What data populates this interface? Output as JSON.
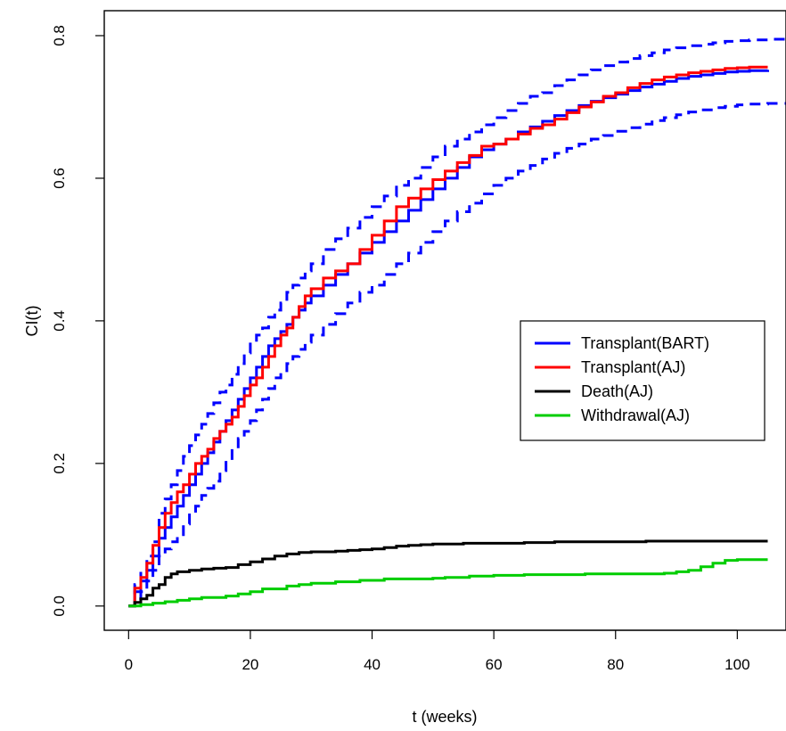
{
  "chart_data": {
    "type": "line",
    "title": "",
    "xlabel": "t (weeks)",
    "ylabel": "CI(t)",
    "xlim": [
      -4,
      108
    ],
    "ylim": [
      -0.034,
      0.835
    ],
    "xticks": [
      0,
      20,
      40,
      60,
      80,
      100
    ],
    "yticks": [
      0.0,
      0.2,
      0.4,
      0.6,
      0.8
    ],
    "xtick_labels": [
      "0",
      "20",
      "40",
      "60",
      "80",
      "100"
    ],
    "ytick_labels": [
      "0.0",
      "0.2",
      "0.4",
      "0.6",
      "0.8"
    ],
    "grid": false,
    "step": true,
    "legend": {
      "position": "right",
      "entries": [
        "Transplant(BART)",
        "Transplant(AJ)",
        "Death(AJ)",
        "Withdrawal(AJ)"
      ]
    },
    "colors": {
      "Transplant(BART)": "#0000ff",
      "Transplant(AJ)": "#ff0000",
      "Death(AJ)": "#000000",
      "Withdrawal(AJ)": "#00cd00"
    },
    "series": [
      {
        "name": "Transplant(BART)",
        "color": "#0000ff",
        "style": "solid",
        "x": [
          0,
          1,
          2,
          3,
          4,
          5,
          6,
          7,
          8,
          9,
          10,
          11,
          12,
          13,
          14,
          15,
          16,
          17,
          18,
          19,
          20,
          21,
          22,
          23,
          24,
          25,
          26,
          27,
          28,
          29,
          30,
          32,
          34,
          36,
          38,
          40,
          42,
          44,
          46,
          48,
          50,
          52,
          54,
          56,
          58,
          60,
          62,
          64,
          66,
          68,
          70,
          72,
          74,
          76,
          78,
          80,
          82,
          84,
          86,
          88,
          90,
          92,
          94,
          96,
          98,
          100,
          102,
          105
        ],
        "y": [
          0.0,
          0.02,
          0.035,
          0.05,
          0.07,
          0.095,
          0.11,
          0.125,
          0.14,
          0.155,
          0.17,
          0.185,
          0.2,
          0.215,
          0.23,
          0.245,
          0.26,
          0.275,
          0.29,
          0.305,
          0.32,
          0.335,
          0.35,
          0.365,
          0.375,
          0.385,
          0.395,
          0.405,
          0.415,
          0.425,
          0.435,
          0.45,
          0.465,
          0.48,
          0.495,
          0.51,
          0.525,
          0.54,
          0.555,
          0.57,
          0.585,
          0.6,
          0.615,
          0.63,
          0.64,
          0.648,
          0.655,
          0.665,
          0.672,
          0.68,
          0.688,
          0.695,
          0.702,
          0.708,
          0.713,
          0.718,
          0.723,
          0.728,
          0.732,
          0.736,
          0.74,
          0.743,
          0.745,
          0.747,
          0.749,
          0.75,
          0.751,
          0.752
        ]
      },
      {
        "name": "Transplant(BART) upper",
        "color": "#0000ff",
        "style": "dashed",
        "x": [
          0,
          1,
          2,
          3,
          4,
          5,
          6,
          7,
          8,
          9,
          10,
          11,
          12,
          13,
          14,
          15,
          16,
          17,
          18,
          19,
          20,
          21,
          22,
          23,
          24,
          25,
          26,
          27,
          28,
          29,
          30,
          32,
          34,
          36,
          38,
          40,
          42,
          44,
          46,
          48,
          50,
          52,
          54,
          56,
          58,
          60,
          62,
          64,
          66,
          68,
          70,
          72,
          74,
          76,
          78,
          80,
          82,
          84,
          86,
          88,
          90,
          92,
          94,
          96,
          98,
          100,
          102,
          105,
          108
        ],
        "y": [
          0.0,
          0.03,
          0.05,
          0.07,
          0.09,
          0.13,
          0.15,
          0.17,
          0.19,
          0.21,
          0.225,
          0.24,
          0.255,
          0.27,
          0.285,
          0.3,
          0.31,
          0.325,
          0.34,
          0.355,
          0.37,
          0.38,
          0.39,
          0.405,
          0.415,
          0.425,
          0.44,
          0.45,
          0.46,
          0.47,
          0.48,
          0.5,
          0.515,
          0.53,
          0.545,
          0.56,
          0.575,
          0.59,
          0.6,
          0.615,
          0.63,
          0.645,
          0.655,
          0.665,
          0.675,
          0.685,
          0.695,
          0.705,
          0.715,
          0.72,
          0.73,
          0.738,
          0.745,
          0.752,
          0.758,
          0.763,
          0.768,
          0.772,
          0.776,
          0.78,
          0.783,
          0.786,
          0.788,
          0.79,
          0.792,
          0.793,
          0.794,
          0.795,
          0.796
        ]
      },
      {
        "name": "Transplant(BART) lower",
        "color": "#0000ff",
        "style": "dashed",
        "x": [
          0,
          1,
          2,
          3,
          4,
          5,
          6,
          7,
          8,
          9,
          10,
          11,
          12,
          13,
          14,
          15,
          16,
          17,
          18,
          19,
          20,
          21,
          22,
          23,
          24,
          25,
          26,
          27,
          28,
          29,
          30,
          32,
          34,
          36,
          38,
          40,
          42,
          44,
          46,
          48,
          50,
          52,
          54,
          56,
          58,
          60,
          62,
          64,
          66,
          68,
          70,
          72,
          74,
          76,
          78,
          80,
          82,
          84,
          86,
          88,
          90,
          92,
          94,
          96,
          98,
          100,
          102,
          105,
          108
        ],
        "y": [
          0.0,
          0.01,
          0.02,
          0.035,
          0.05,
          0.07,
          0.08,
          0.09,
          0.1,
          0.115,
          0.13,
          0.14,
          0.155,
          0.165,
          0.175,
          0.19,
          0.205,
          0.22,
          0.235,
          0.245,
          0.26,
          0.275,
          0.29,
          0.305,
          0.32,
          0.33,
          0.34,
          0.35,
          0.36,
          0.37,
          0.38,
          0.395,
          0.41,
          0.425,
          0.44,
          0.45,
          0.465,
          0.48,
          0.495,
          0.51,
          0.525,
          0.54,
          0.553,
          0.565,
          0.578,
          0.59,
          0.6,
          0.61,
          0.618,
          0.627,
          0.635,
          0.642,
          0.648,
          0.655,
          0.66,
          0.666,
          0.671,
          0.676,
          0.681,
          0.685,
          0.689,
          0.693,
          0.696,
          0.699,
          0.701,
          0.703,
          0.704,
          0.705,
          0.706
        ]
      },
      {
        "name": "Transplant(AJ)",
        "color": "#ff0000",
        "style": "solid",
        "x": [
          0,
          1,
          2,
          3,
          4,
          5,
          6,
          7,
          8,
          9,
          10,
          11,
          12,
          13,
          14,
          15,
          16,
          17,
          18,
          19,
          20,
          21,
          22,
          23,
          24,
          25,
          26,
          27,
          28,
          29,
          30,
          32,
          34,
          36,
          38,
          40,
          42,
          44,
          46,
          48,
          50,
          52,
          54,
          56,
          58,
          60,
          62,
          64,
          66,
          68,
          70,
          72,
          74,
          76,
          78,
          80,
          82,
          84,
          86,
          88,
          90,
          92,
          94,
          96,
          98,
          100,
          102,
          105
        ],
        "y": [
          0.0,
          0.025,
          0.04,
          0.06,
          0.085,
          0.11,
          0.13,
          0.145,
          0.16,
          0.17,
          0.185,
          0.2,
          0.21,
          0.22,
          0.235,
          0.245,
          0.255,
          0.265,
          0.28,
          0.295,
          0.31,
          0.32,
          0.335,
          0.35,
          0.365,
          0.38,
          0.39,
          0.405,
          0.42,
          0.435,
          0.445,
          0.46,
          0.47,
          0.48,
          0.5,
          0.52,
          0.54,
          0.56,
          0.572,
          0.585,
          0.598,
          0.61,
          0.622,
          0.632,
          0.645,
          0.648,
          0.655,
          0.662,
          0.67,
          0.675,
          0.683,
          0.692,
          0.7,
          0.707,
          0.715,
          0.72,
          0.727,
          0.733,
          0.738,
          0.742,
          0.745,
          0.748,
          0.75,
          0.752,
          0.754,
          0.755,
          0.756,
          0.756
        ]
      },
      {
        "name": "Death(AJ)",
        "color": "#000000",
        "style": "solid",
        "x": [
          0,
          1,
          2,
          3,
          4,
          5,
          6,
          7,
          8,
          10,
          12,
          14,
          16,
          18,
          20,
          22,
          24,
          26,
          28,
          30,
          32,
          34,
          36,
          38,
          40,
          42,
          44,
          46,
          48,
          50,
          55,
          60,
          65,
          70,
          75,
          80,
          85,
          90,
          95,
          100,
          105
        ],
        "y": [
          0.0,
          0.005,
          0.01,
          0.015,
          0.025,
          0.03,
          0.04,
          0.045,
          0.048,
          0.05,
          0.052,
          0.053,
          0.054,
          0.058,
          0.062,
          0.066,
          0.07,
          0.073,
          0.075,
          0.076,
          0.076,
          0.077,
          0.078,
          0.079,
          0.08,
          0.082,
          0.084,
          0.085,
          0.086,
          0.087,
          0.088,
          0.088,
          0.089,
          0.09,
          0.09,
          0.09,
          0.091,
          0.091,
          0.091,
          0.091,
          0.091
        ]
      },
      {
        "name": "Withdrawal(AJ)",
        "color": "#00cd00",
        "style": "solid",
        "x": [
          0,
          2,
          4,
          6,
          8,
          10,
          12,
          16,
          18,
          20,
          22,
          26,
          28,
          30,
          34,
          38,
          42,
          46,
          50,
          52,
          56,
          60,
          65,
          70,
          75,
          80,
          85,
          88,
          90,
          92,
          94,
          96,
          98,
          100,
          105
        ],
        "y": [
          0.0,
          0.002,
          0.004,
          0.006,
          0.008,
          0.01,
          0.012,
          0.014,
          0.017,
          0.02,
          0.024,
          0.028,
          0.03,
          0.032,
          0.034,
          0.036,
          0.038,
          0.038,
          0.039,
          0.04,
          0.042,
          0.043,
          0.044,
          0.044,
          0.045,
          0.045,
          0.045,
          0.046,
          0.048,
          0.05,
          0.055,
          0.06,
          0.064,
          0.065,
          0.065
        ]
      }
    ]
  }
}
